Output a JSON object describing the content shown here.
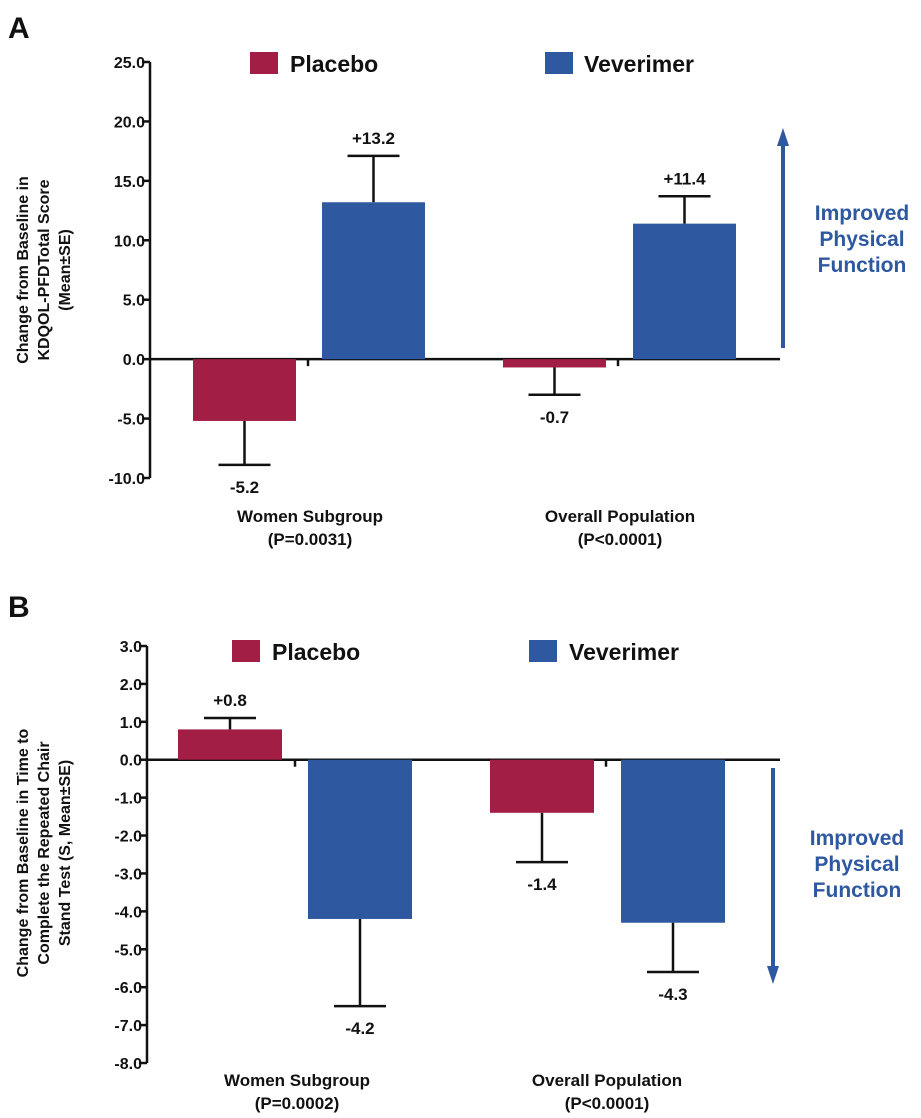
{
  "colors": {
    "placebo": "#a31e45",
    "veverimer": "#2e58a0",
    "note": "#2e58a0",
    "axis": "#111111"
  },
  "chart_data": [
    {
      "panel": "A",
      "type": "bar",
      "ylabel_lines": [
        "Change from Baseline in",
        "KDQOL-PFDTotal Score",
        "(Mean±SE)"
      ],
      "categories": [
        "Women Subgroup",
        "Overall Population"
      ],
      "category_notes": [
        "(P=0.0031)",
        "(P<0.0001)"
      ],
      "ylim": [
        -10,
        25
      ],
      "yticks": [
        -10,
        -5,
        0,
        5,
        10,
        15,
        20,
        25
      ],
      "tick_labels": [
        "-10.0",
        "-5.0",
        "0.0",
        "5.0",
        "10.0",
        "15.0",
        "20.0",
        "25.0"
      ],
      "legend": [
        "Placebo",
        "Veverimer"
      ],
      "legend_position": "top",
      "grid": false,
      "series": [
        {
          "name": "Placebo",
          "values": [
            -5.2,
            -0.7
          ],
          "errors": [
            3.7,
            2.3
          ],
          "value_labels": [
            "-5.2",
            "-0.7"
          ]
        },
        {
          "name": "Veverimer",
          "values": [
            13.2,
            11.4
          ],
          "errors": [
            3.9,
            2.3
          ],
          "value_labels": [
            "+13.2",
            "+11.4"
          ]
        }
      ],
      "annotation": {
        "lines": [
          "Improved",
          "Physical",
          "Function"
        ],
        "arrow": "up"
      }
    },
    {
      "panel": "B",
      "type": "bar",
      "ylabel_lines": [
        "Change from Baseline in Time to",
        "Complete the Repeated Chair",
        "Stand Test (S, Mean±SE)"
      ],
      "categories": [
        "Women Subgroup",
        "Overall Population"
      ],
      "category_notes": [
        "(P=0.0002)",
        "(P<0.0001)"
      ],
      "ylim": [
        -8,
        3
      ],
      "yticks": [
        -8,
        -7,
        -6,
        -5,
        -4,
        -3,
        -2,
        -1,
        0,
        1,
        2,
        3
      ],
      "tick_labels": [
        "-8.0",
        "-7.0",
        "-6.0",
        "-5.0",
        "-4.0",
        "-3.0",
        "-2.0",
        "-1.0",
        "0.0",
        "1.0",
        "2.0",
        "3.0"
      ],
      "legend": [
        "Placebo",
        "Veverimer"
      ],
      "legend_position": "top",
      "grid": false,
      "series": [
        {
          "name": "Placebo",
          "values": [
            0.8,
            -1.4
          ],
          "errors": [
            0.3,
            1.3
          ],
          "value_labels": [
            "+0.8",
            "-1.4"
          ]
        },
        {
          "name": "Veverimer",
          "values": [
            -4.2,
            -4.3
          ],
          "errors": [
            2.3,
            1.3
          ],
          "value_labels": [
            "-4.2",
            "-4.3"
          ]
        }
      ],
      "annotation": {
        "lines": [
          "Improved",
          "Physical",
          "Function"
        ],
        "arrow": "down"
      }
    }
  ]
}
